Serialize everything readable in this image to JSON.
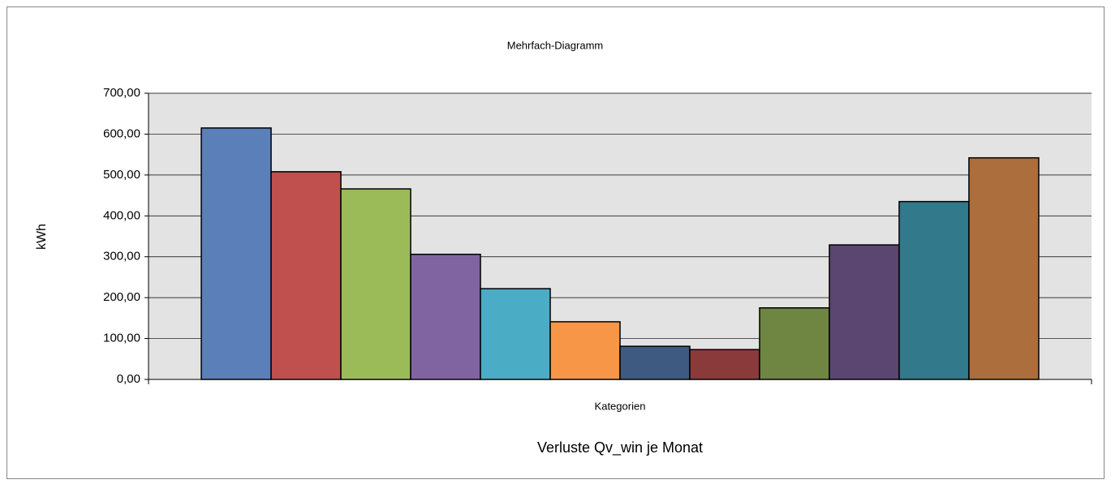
{
  "chart_data": {
    "type": "bar",
    "title": "Mehrfach-Diagramm",
    "y_label": "kWh",
    "x_label": "Verluste Qv_win je Monat",
    "categories": [
      "Kategorien"
    ],
    "series": [
      {
        "color": "#5b7fb8",
        "values": [
          615
        ]
      },
      {
        "color": "#c0504d",
        "values": [
          508
        ]
      },
      {
        "color": "#9bbb59",
        "values": [
          466
        ]
      },
      {
        "color": "#8064a2",
        "values": [
          306
        ]
      },
      {
        "color": "#4bacc6",
        "values": [
          222
        ]
      },
      {
        "color": "#f79646",
        "values": [
          141
        ]
      },
      {
        "color": "#3f5a80",
        "values": [
          81
        ]
      },
      {
        "color": "#8a3a3a",
        "values": [
          73
        ]
      },
      {
        "color": "#6e8642",
        "values": [
          175
        ]
      },
      {
        "color": "#5a4670",
        "values": [
          329
        ]
      },
      {
        "color": "#31798b",
        "values": [
          435
        ]
      },
      {
        "color": "#ab6e3c",
        "values": [
          542
        ]
      }
    ],
    "ylim": [
      0,
      700
    ],
    "yticks": [
      {
        "value": 0,
        "label": "0,00"
      },
      {
        "value": 100,
        "label": "100,00"
      },
      {
        "value": 200,
        "label": "200,00"
      },
      {
        "value": 300,
        "label": "300,00"
      },
      {
        "value": 400,
        "label": "400,00"
      },
      {
        "value": 500,
        "label": "500,00"
      },
      {
        "value": 600,
        "label": "600,00"
      },
      {
        "value": 700,
        "label": "700,00"
      }
    ],
    "grid": true
  }
}
